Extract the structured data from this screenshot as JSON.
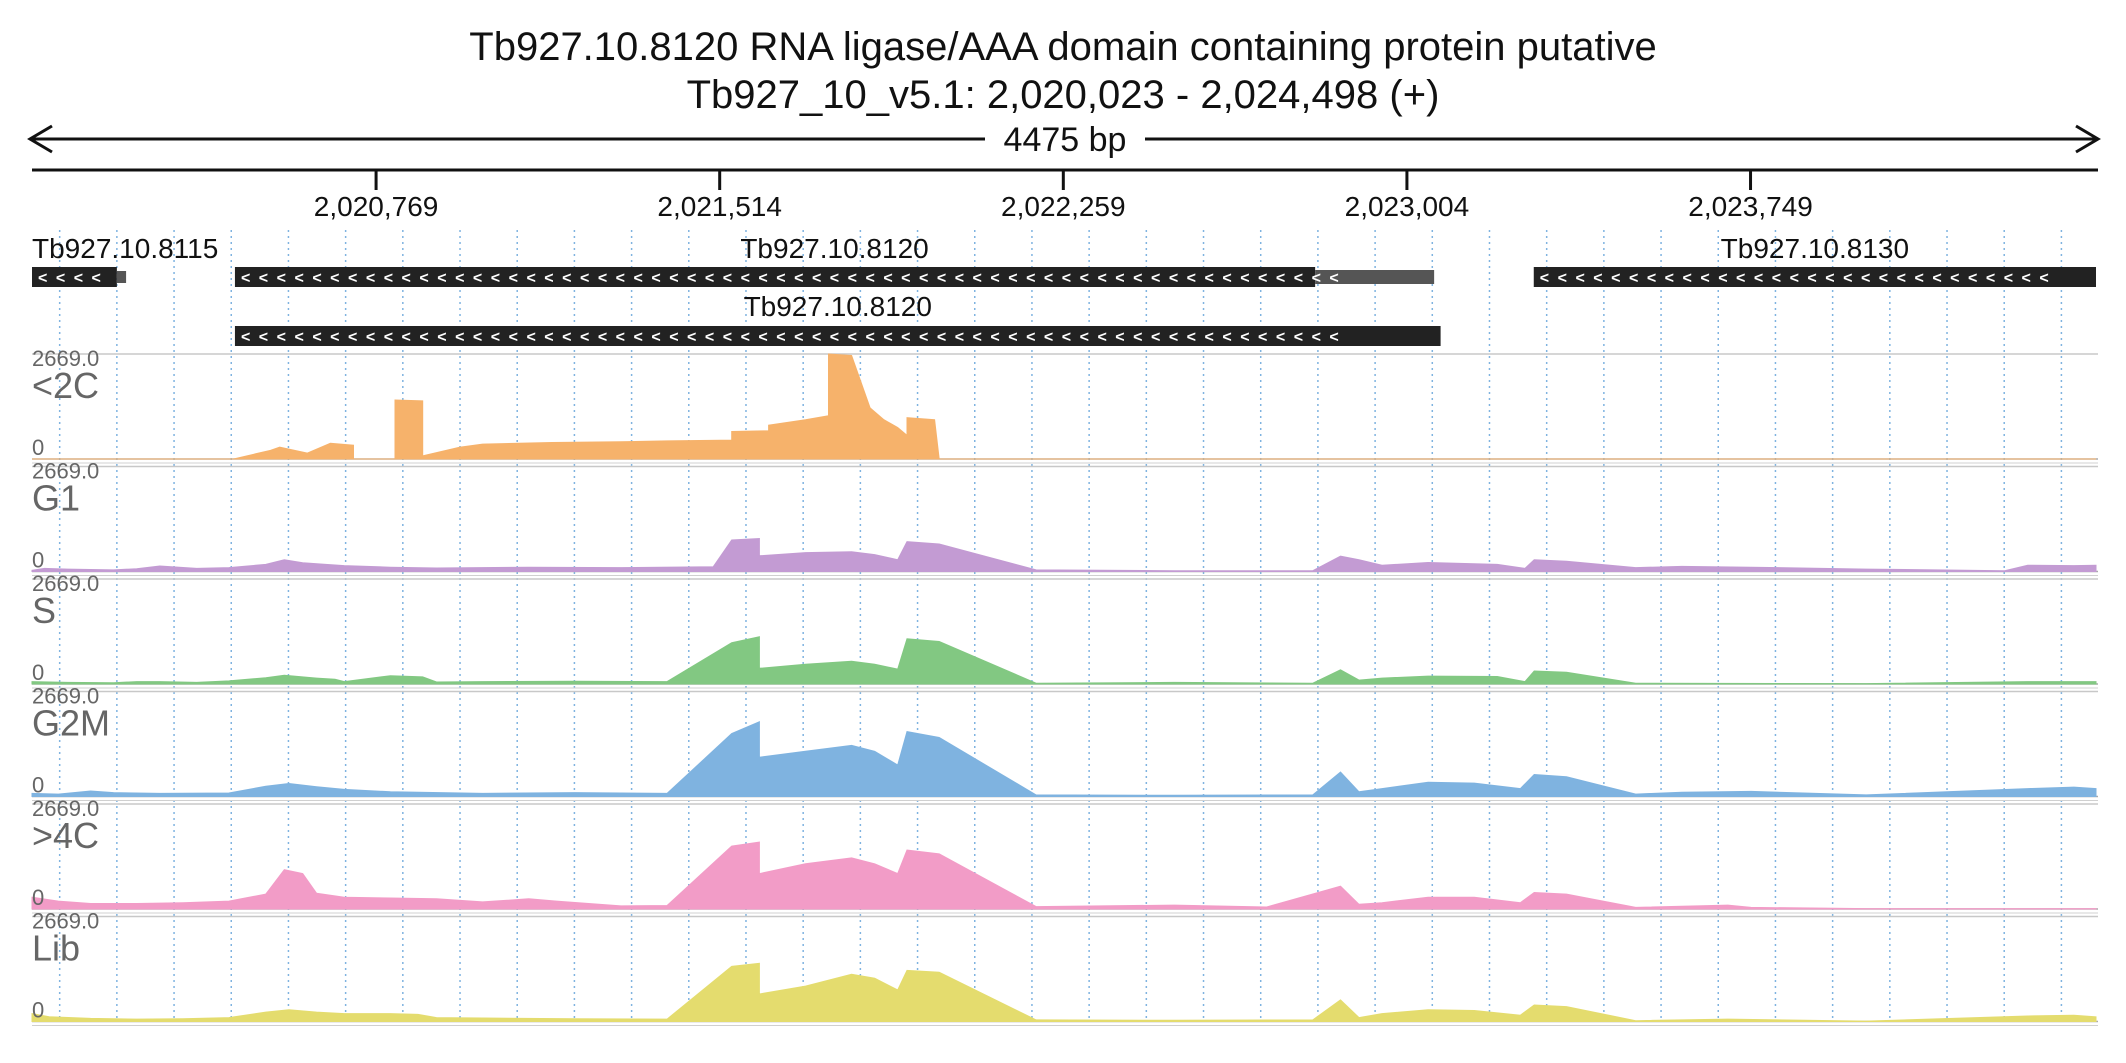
{
  "title_line1": "Tb927.10.8120  RNA ligase/AAA domain containing protein  putative",
  "title_line2": "Tb927_10_v5.1: 2,020,023 - 2,024,498 (+)",
  "span_label": "4475 bp",
  "colors": {
    "orange": "#f6b26b",
    "purple": "#c39bd3",
    "green": "#82c882",
    "blue": "#7fb3e0",
    "pink": "#f29cc7",
    "yellow": "#e4dc6e",
    "gene": "#222222"
  },
  "chart_data": {
    "type": "area",
    "region": {
      "chromosome": "Tb927_10_v5.1",
      "start": 2020023,
      "end": 2024498,
      "strand": "+"
    },
    "xlim": [
      2020023,
      2024498
    ],
    "x_ticks": [
      {
        "label": "2,020,769",
        "value": 2020769
      },
      {
        "label": "2,021,514",
        "value": 2021514
      },
      {
        "label": "2,022,259",
        "value": 2022259
      },
      {
        "label": "2,023,004",
        "value": 2023004
      },
      {
        "label": "2,023,749",
        "value": 2023749
      }
    ],
    "genes": [
      {
        "label": "Tb927.10.8115",
        "start": 2020023,
        "end": 2020227,
        "row": 0,
        "strand": "-",
        "cds_end": 2020207
      },
      {
        "label": "Tb927.10.8120",
        "start": 2020463,
        "end": 2023063,
        "row": 0,
        "strand": "-",
        "utr": [
          2022805,
          2023063
        ]
      },
      {
        "label": "Tb927.10.8130",
        "start": 2023279,
        "end": 2024498,
        "row": 0,
        "strand": "-"
      },
      {
        "label": "Tb927.10.8120",
        "start": 2020463,
        "end": 2023077,
        "row": 1,
        "strand": "-"
      }
    ],
    "ylim": [
      0,
      2669
    ],
    "y_max_label": "2669.0",
    "y_min_label": "0",
    "tracks": [
      {
        "name": "<2C",
        "color": "#f6b26b",
        "points": [
          [
            2020023,
            0
          ],
          [
            2020460,
            0
          ],
          [
            2020540,
            220
          ],
          [
            2020560,
            300
          ],
          [
            2020620,
            150
          ],
          [
            2020670,
            400
          ],
          [
            2020720,
            350
          ],
          [
            2020720,
            0
          ],
          [
            2020810,
            0
          ],
          [
            2020810,
            1500
          ],
          [
            2020870,
            1480
          ],
          [
            2020870,
            80
          ],
          [
            2020950,
            300
          ],
          [
            2021000,
            380
          ],
          [
            2021150,
            420
          ],
          [
            2021300,
            440
          ],
          [
            2021400,
            460
          ],
          [
            2021540,
            480
          ],
          [
            2021540,
            700
          ],
          [
            2021620,
            720
          ],
          [
            2021620,
            860
          ],
          [
            2021700,
            1000
          ],
          [
            2021750,
            1100
          ],
          [
            2021750,
            2669
          ],
          [
            2021800,
            2630
          ],
          [
            2021840,
            1300
          ],
          [
            2021870,
            1000
          ],
          [
            2021900,
            800
          ],
          [
            2021920,
            600
          ],
          [
            2021920,
            0
          ],
          [
            2021920,
            1050
          ],
          [
            2021980,
            1000
          ],
          [
            2021990,
            0
          ],
          [
            2024498,
            0
          ]
        ]
      },
      {
        "name": "G1",
        "color": "#c39bd3",
        "points": [
          [
            2020023,
            30
          ],
          [
            2020050,
            80
          ],
          [
            2020100,
            60
          ],
          [
            2020200,
            40
          ],
          [
            2020250,
            70
          ],
          [
            2020300,
            140
          ],
          [
            2020380,
            80
          ],
          [
            2020450,
            100
          ],
          [
            2020530,
            180
          ],
          [
            2020570,
            300
          ],
          [
            2020610,
            220
          ],
          [
            2020660,
            180
          ],
          [
            2020700,
            150
          ],
          [
            2020800,
            110
          ],
          [
            2020900,
            90
          ],
          [
            2021100,
            110
          ],
          [
            2021300,
            100
          ],
          [
            2021500,
            120
          ],
          [
            2021540,
            800
          ],
          [
            2021600,
            840
          ],
          [
            2021600,
            400
          ],
          [
            2021700,
            480
          ],
          [
            2021800,
            500
          ],
          [
            2021850,
            430
          ],
          [
            2021900,
            300
          ],
          [
            2021920,
            760
          ],
          [
            2021990,
            700
          ],
          [
            2022200,
            40
          ],
          [
            2022500,
            20
          ],
          [
            2022800,
            20
          ],
          [
            2022860,
            390
          ],
          [
            2022900,
            300
          ],
          [
            2022950,
            160
          ],
          [
            2023050,
            230
          ],
          [
            2023200,
            180
          ],
          [
            2023260,
            80
          ],
          [
            2023280,
            300
          ],
          [
            2023350,
            260
          ],
          [
            2023500,
            100
          ],
          [
            2023600,
            130
          ],
          [
            2023750,
            110
          ],
          [
            2024000,
            60
          ],
          [
            2024300,
            20
          ],
          [
            2024350,
            160
          ],
          [
            2024450,
            150
          ],
          [
            2024498,
            160
          ]
        ]
      },
      {
        "name": "S",
        "color": "#82c882",
        "points": [
          [
            2020023,
            60
          ],
          [
            2020100,
            40
          ],
          [
            2020200,
            30
          ],
          [
            2020250,
            60
          ],
          [
            2020300,
            60
          ],
          [
            2020380,
            40
          ],
          [
            2020450,
            80
          ],
          [
            2020530,
            160
          ],
          [
            2020570,
            220
          ],
          [
            2020640,
            150
          ],
          [
            2020680,
            120
          ],
          [
            2020700,
            60
          ],
          [
            2020800,
            210
          ],
          [
            2020870,
            180
          ],
          [
            2020900,
            50
          ],
          [
            2021000,
            60
          ],
          [
            2021200,
            70
          ],
          [
            2021400,
            60
          ],
          [
            2021540,
            1050
          ],
          [
            2021600,
            1200
          ],
          [
            2021600,
            400
          ],
          [
            2021700,
            500
          ],
          [
            2021800,
            580
          ],
          [
            2021850,
            500
          ],
          [
            2021900,
            380
          ],
          [
            2021920,
            1150
          ],
          [
            2021990,
            1080
          ],
          [
            2022200,
            20
          ],
          [
            2022500,
            40
          ],
          [
            2022800,
            20
          ],
          [
            2022860,
            360
          ],
          [
            2022900,
            100
          ],
          [
            2022950,
            150
          ],
          [
            2023050,
            200
          ],
          [
            2023200,
            190
          ],
          [
            2023260,
            60
          ],
          [
            2023280,
            330
          ],
          [
            2023350,
            300
          ],
          [
            2023500,
            20
          ],
          [
            2024000,
            10
          ],
          [
            2024350,
            60
          ],
          [
            2024498,
            60
          ]
        ]
      },
      {
        "name": "G2M",
        "color": "#7fb3e0",
        "points": [
          [
            2020023,
            80
          ],
          [
            2020080,
            60
          ],
          [
            2020150,
            140
          ],
          [
            2020200,
            100
          ],
          [
            2020300,
            80
          ],
          [
            2020450,
            90
          ],
          [
            2020530,
            260
          ],
          [
            2020580,
            330
          ],
          [
            2020640,
            250
          ],
          [
            2020700,
            180
          ],
          [
            2020800,
            120
          ],
          [
            2021000,
            80
          ],
          [
            2021200,
            100
          ],
          [
            2021400,
            80
          ],
          [
            2021540,
            1600
          ],
          [
            2021600,
            1900
          ],
          [
            2021600,
            1000
          ],
          [
            2021700,
            1150
          ],
          [
            2021800,
            1300
          ],
          [
            2021850,
            1150
          ],
          [
            2021900,
            800
          ],
          [
            2021920,
            1650
          ],
          [
            2021990,
            1500
          ],
          [
            2022200,
            40
          ],
          [
            2022500,
            30
          ],
          [
            2022800,
            40
          ],
          [
            2022860,
            620
          ],
          [
            2022900,
            120
          ],
          [
            2022950,
            200
          ],
          [
            2023050,
            360
          ],
          [
            2023150,
            340
          ],
          [
            2023250,
            200
          ],
          [
            2023280,
            560
          ],
          [
            2023350,
            500
          ],
          [
            2023500,
            60
          ],
          [
            2023600,
            110
          ],
          [
            2023750,
            130
          ],
          [
            2024000,
            40
          ],
          [
            2024350,
            200
          ],
          [
            2024450,
            240
          ],
          [
            2024498,
            200
          ]
        ]
      },
      {
        "name": ">4C",
        "color": "#f29cc7",
        "points": [
          [
            2020023,
            300
          ],
          [
            2020080,
            200
          ],
          [
            2020150,
            140
          ],
          [
            2020250,
            140
          ],
          [
            2020350,
            160
          ],
          [
            2020450,
            200
          ],
          [
            2020530,
            380
          ],
          [
            2020570,
            1000
          ],
          [
            2020610,
            900
          ],
          [
            2020640,
            400
          ],
          [
            2020700,
            300
          ],
          [
            2020800,
            280
          ],
          [
            2020900,
            260
          ],
          [
            2021000,
            180
          ],
          [
            2021100,
            260
          ],
          [
            2021160,
            200
          ],
          [
            2021300,
            80
          ],
          [
            2021400,
            90
          ],
          [
            2021540,
            1600
          ],
          [
            2021600,
            1700
          ],
          [
            2021600,
            900
          ],
          [
            2021700,
            1150
          ],
          [
            2021800,
            1300
          ],
          [
            2021850,
            1150
          ],
          [
            2021900,
            900
          ],
          [
            2021920,
            1500
          ],
          [
            2021990,
            1400
          ],
          [
            2022200,
            60
          ],
          [
            2022500,
            100
          ],
          [
            2022700,
            50
          ],
          [
            2022860,
            580
          ],
          [
            2022900,
            120
          ],
          [
            2022950,
            160
          ],
          [
            2023050,
            300
          ],
          [
            2023150,
            300
          ],
          [
            2023250,
            160
          ],
          [
            2023280,
            420
          ],
          [
            2023350,
            380
          ],
          [
            2023500,
            40
          ],
          [
            2023700,
            100
          ],
          [
            2023750,
            40
          ],
          [
            2024000,
            10
          ],
          [
            2024498,
            10
          ]
        ]
      },
      {
        "name": "Lib",
        "color": "#e4dc6e",
        "points": [
          [
            2020023,
            200
          ],
          [
            2020060,
            120
          ],
          [
            2020150,
            80
          ],
          [
            2020250,
            60
          ],
          [
            2020350,
            70
          ],
          [
            2020450,
            100
          ],
          [
            2020530,
            240
          ],
          [
            2020580,
            300
          ],
          [
            2020640,
            240
          ],
          [
            2020700,
            200
          ],
          [
            2020800,
            200
          ],
          [
            2020860,
            180
          ],
          [
            2020900,
            100
          ],
          [
            2021000,
            90
          ],
          [
            2021200,
            70
          ],
          [
            2021400,
            60
          ],
          [
            2021540,
            1400
          ],
          [
            2021600,
            1480
          ],
          [
            2021600,
            700
          ],
          [
            2021700,
            900
          ],
          [
            2021800,
            1200
          ],
          [
            2021850,
            1100
          ],
          [
            2021900,
            800
          ],
          [
            2021920,
            1300
          ],
          [
            2021990,
            1250
          ],
          [
            2022200,
            40
          ],
          [
            2022500,
            30
          ],
          [
            2022800,
            40
          ],
          [
            2022860,
            550
          ],
          [
            2022900,
            100
          ],
          [
            2022950,
            200
          ],
          [
            2023050,
            300
          ],
          [
            2023150,
            280
          ],
          [
            2023250,
            160
          ],
          [
            2023280,
            420
          ],
          [
            2023350,
            380
          ],
          [
            2023500,
            20
          ],
          [
            2023700,
            60
          ],
          [
            2024000,
            10
          ],
          [
            2024350,
            140
          ],
          [
            2024450,
            160
          ],
          [
            2024498,
            120
          ]
        ]
      }
    ]
  }
}
